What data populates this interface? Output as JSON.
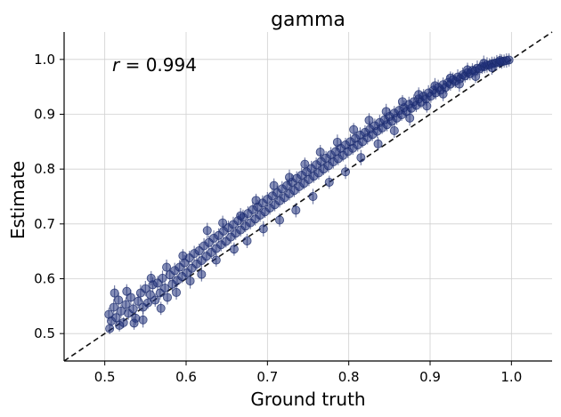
{
  "chart_data": {
    "type": "scatter",
    "title": "gamma",
    "xlabel": "Ground truth",
    "ylabel": "Estimate",
    "annotation": {
      "variable": "r",
      "text": " = 0.994"
    },
    "xlim": [
      0.45,
      1.05
    ],
    "ylim": [
      0.45,
      1.05
    ],
    "xticks": [
      "0.5",
      "0.6",
      "0.7",
      "0.8",
      "0.9",
      "1.0"
    ],
    "yticks": [
      "0.5",
      "0.6",
      "0.7",
      "0.8",
      "0.9",
      "1.0"
    ],
    "grid": true,
    "reference_line": {
      "style": "dashed",
      "x": [
        0.45,
        1.05
      ],
      "y": [
        0.45,
        1.05
      ]
    },
    "marker_color": "#1f2f7a",
    "line_color": "#1a2a6c",
    "points": [
      [
        0.505,
        0.535,
        0.012
      ],
      [
        0.508,
        0.523,
        0.01
      ],
      [
        0.511,
        0.548,
        0.015
      ],
      [
        0.514,
        0.529,
        0.011
      ],
      [
        0.517,
        0.561,
        0.014
      ],
      [
        0.52,
        0.541,
        0.012
      ],
      [
        0.523,
        0.52,
        0.01
      ],
      [
        0.526,
        0.553,
        0.013
      ],
      [
        0.529,
        0.537,
        0.012
      ],
      [
        0.532,
        0.566,
        0.014
      ],
      [
        0.535,
        0.545,
        0.011
      ],
      [
        0.538,
        0.528,
        0.012
      ],
      [
        0.541,
        0.559,
        0.013
      ],
      [
        0.544,
        0.574,
        0.015
      ],
      [
        0.547,
        0.548,
        0.012
      ],
      [
        0.55,
        0.582,
        0.014
      ],
      [
        0.553,
        0.556,
        0.011
      ],
      [
        0.556,
        0.571,
        0.013
      ],
      [
        0.559,
        0.589,
        0.014
      ],
      [
        0.562,
        0.561,
        0.012
      ],
      [
        0.565,
        0.592,
        0.013
      ],
      [
        0.568,
        0.574,
        0.012
      ],
      [
        0.571,
        0.601,
        0.014
      ],
      [
        0.574,
        0.583,
        0.011
      ],
      [
        0.577,
        0.566,
        0.013
      ],
      [
        0.58,
        0.607,
        0.012
      ],
      [
        0.583,
        0.59,
        0.013
      ],
      [
        0.586,
        0.615,
        0.014
      ],
      [
        0.589,
        0.597,
        0.012
      ],
      [
        0.592,
        0.621,
        0.013
      ],
      [
        0.595,
        0.604,
        0.012
      ],
      [
        0.598,
        0.629,
        0.014
      ],
      [
        0.601,
        0.611,
        0.011
      ],
      [
        0.604,
        0.638,
        0.013
      ],
      [
        0.607,
        0.619,
        0.012
      ],
      [
        0.61,
        0.646,
        0.014
      ],
      [
        0.613,
        0.627,
        0.012
      ],
      [
        0.616,
        0.651,
        0.013
      ],
      [
        0.619,
        0.633,
        0.012
      ],
      [
        0.622,
        0.66,
        0.014
      ],
      [
        0.625,
        0.641,
        0.011
      ],
      [
        0.628,
        0.666,
        0.013
      ],
      [
        0.631,
        0.648,
        0.012
      ],
      [
        0.634,
        0.674,
        0.014
      ],
      [
        0.637,
        0.655,
        0.012
      ],
      [
        0.64,
        0.679,
        0.013
      ],
      [
        0.643,
        0.662,
        0.012
      ],
      [
        0.646,
        0.687,
        0.014
      ],
      [
        0.649,
        0.668,
        0.011
      ],
      [
        0.652,
        0.693,
        0.013
      ],
      [
        0.655,
        0.676,
        0.012
      ],
      [
        0.658,
        0.699,
        0.014
      ],
      [
        0.661,
        0.683,
        0.012
      ],
      [
        0.664,
        0.706,
        0.013
      ],
      [
        0.667,
        0.689,
        0.012
      ],
      [
        0.67,
        0.712,
        0.014
      ],
      [
        0.673,
        0.696,
        0.011
      ],
      [
        0.676,
        0.719,
        0.013
      ],
      [
        0.679,
        0.702,
        0.012
      ],
      [
        0.682,
        0.726,
        0.014
      ],
      [
        0.685,
        0.709,
        0.012
      ],
      [
        0.688,
        0.731,
        0.013
      ],
      [
        0.691,
        0.716,
        0.012
      ],
      [
        0.694,
        0.738,
        0.014
      ],
      [
        0.697,
        0.722,
        0.011
      ],
      [
        0.7,
        0.745,
        0.013
      ],
      [
        0.703,
        0.729,
        0.012
      ],
      [
        0.706,
        0.751,
        0.014
      ],
      [
        0.709,
        0.735,
        0.012
      ],
      [
        0.712,
        0.757,
        0.013
      ],
      [
        0.715,
        0.742,
        0.012
      ],
      [
        0.718,
        0.764,
        0.014
      ],
      [
        0.721,
        0.748,
        0.011
      ],
      [
        0.724,
        0.77,
        0.013
      ],
      [
        0.727,
        0.755,
        0.012
      ],
      [
        0.73,
        0.776,
        0.014
      ],
      [
        0.733,
        0.761,
        0.012
      ],
      [
        0.736,
        0.783,
        0.013
      ],
      [
        0.739,
        0.768,
        0.012
      ],
      [
        0.742,
        0.789,
        0.014
      ],
      [
        0.745,
        0.774,
        0.011
      ],
      [
        0.748,
        0.795,
        0.013
      ],
      [
        0.751,
        0.781,
        0.012
      ],
      [
        0.754,
        0.801,
        0.014
      ],
      [
        0.757,
        0.787,
        0.012
      ],
      [
        0.76,
        0.808,
        0.013
      ],
      [
        0.763,
        0.793,
        0.012
      ],
      [
        0.766,
        0.814,
        0.014
      ],
      [
        0.769,
        0.8,
        0.011
      ],
      [
        0.772,
        0.82,
        0.013
      ],
      [
        0.775,
        0.806,
        0.012
      ],
      [
        0.778,
        0.826,
        0.014
      ],
      [
        0.781,
        0.813,
        0.012
      ],
      [
        0.784,
        0.832,
        0.013
      ],
      [
        0.787,
        0.819,
        0.012
      ],
      [
        0.79,
        0.838,
        0.014
      ],
      [
        0.793,
        0.825,
        0.011
      ],
      [
        0.796,
        0.844,
        0.013
      ],
      [
        0.799,
        0.832,
        0.012
      ],
      [
        0.802,
        0.85,
        0.014
      ],
      [
        0.805,
        0.838,
        0.012
      ],
      [
        0.808,
        0.856,
        0.013
      ],
      [
        0.811,
        0.844,
        0.012
      ],
      [
        0.814,
        0.862,
        0.014
      ],
      [
        0.817,
        0.85,
        0.011
      ],
      [
        0.82,
        0.867,
        0.013
      ],
      [
        0.823,
        0.857,
        0.012
      ],
      [
        0.826,
        0.873,
        0.014
      ],
      [
        0.829,
        0.863,
        0.012
      ],
      [
        0.832,
        0.879,
        0.013
      ],
      [
        0.835,
        0.869,
        0.012
      ],
      [
        0.838,
        0.885,
        0.014
      ],
      [
        0.841,
        0.875,
        0.011
      ],
      [
        0.844,
        0.89,
        0.013
      ],
      [
        0.847,
        0.881,
        0.012
      ],
      [
        0.85,
        0.896,
        0.014
      ],
      [
        0.853,
        0.887,
        0.012
      ],
      [
        0.856,
        0.902,
        0.013
      ],
      [
        0.859,
        0.893,
        0.012
      ],
      [
        0.862,
        0.907,
        0.014
      ],
      [
        0.865,
        0.899,
        0.011
      ],
      [
        0.868,
        0.912,
        0.013
      ],
      [
        0.871,
        0.905,
        0.012
      ],
      [
        0.874,
        0.918,
        0.014
      ],
      [
        0.877,
        0.911,
        0.012
      ],
      [
        0.88,
        0.923,
        0.013
      ],
      [
        0.883,
        0.916,
        0.012
      ],
      [
        0.886,
        0.928,
        0.014
      ],
      [
        0.889,
        0.922,
        0.011
      ],
      [
        0.892,
        0.933,
        0.013
      ],
      [
        0.895,
        0.928,
        0.012
      ],
      [
        0.898,
        0.939,
        0.014
      ],
      [
        0.901,
        0.933,
        0.012
      ],
      [
        0.904,
        0.944,
        0.013
      ],
      [
        0.907,
        0.939,
        0.012
      ],
      [
        0.91,
        0.949,
        0.014
      ],
      [
        0.913,
        0.944,
        0.011
      ],
      [
        0.916,
        0.954,
        0.013
      ],
      [
        0.919,
        0.949,
        0.012
      ],
      [
        0.922,
        0.958,
        0.014
      ],
      [
        0.925,
        0.955,
        0.012
      ],
      [
        0.928,
        0.963,
        0.013
      ],
      [
        0.931,
        0.96,
        0.012
      ],
      [
        0.934,
        0.968,
        0.014
      ],
      [
        0.937,
        0.965,
        0.011
      ],
      [
        0.94,
        0.972,
        0.013
      ],
      [
        0.943,
        0.97,
        0.012
      ],
      [
        0.946,
        0.976,
        0.014
      ],
      [
        0.949,
        0.974,
        0.012
      ],
      [
        0.952,
        0.98,
        0.013
      ],
      [
        0.955,
        0.979,
        0.012
      ],
      [
        0.958,
        0.984,
        0.014
      ],
      [
        0.961,
        0.983,
        0.011
      ],
      [
        0.964,
        0.987,
        0.013
      ],
      [
        0.967,
        0.987,
        0.012
      ],
      [
        0.97,
        0.99,
        0.014
      ],
      [
        0.973,
        0.99,
        0.012
      ],
      [
        0.976,
        0.992,
        0.013
      ],
      [
        0.979,
        0.993,
        0.012
      ],
      [
        0.982,
        0.994,
        0.014
      ],
      [
        0.985,
        0.995,
        0.011
      ],
      [
        0.988,
        0.996,
        0.013
      ],
      [
        0.991,
        0.997,
        0.012
      ],
      [
        0.994,
        0.998,
        0.013
      ],
      [
        0.997,
        0.999,
        0.012
      ],
      [
        0.506,
        0.509,
        0.01
      ],
      [
        0.512,
        0.574,
        0.014
      ],
      [
        0.518,
        0.515,
        0.011
      ],
      [
        0.527,
        0.577,
        0.013
      ],
      [
        0.536,
        0.519,
        0.012
      ],
      [
        0.547,
        0.525,
        0.014
      ],
      [
        0.557,
        0.601,
        0.013
      ],
      [
        0.569,
        0.546,
        0.012
      ],
      [
        0.576,
        0.621,
        0.014
      ],
      [
        0.588,
        0.575,
        0.013
      ],
      [
        0.596,
        0.642,
        0.012
      ],
      [
        0.605,
        0.596,
        0.014
      ],
      [
        0.619,
        0.608,
        0.013
      ],
      [
        0.626,
        0.688,
        0.014
      ],
      [
        0.637,
        0.634,
        0.012
      ],
      [
        0.645,
        0.702,
        0.013
      ],
      [
        0.659,
        0.654,
        0.012
      ],
      [
        0.667,
        0.715,
        0.014
      ],
      [
        0.675,
        0.669,
        0.013
      ],
      [
        0.686,
        0.743,
        0.012
      ],
      [
        0.695,
        0.691,
        0.014
      ],
      [
        0.708,
        0.77,
        0.013
      ],
      [
        0.715,
        0.707,
        0.012
      ],
      [
        0.727,
        0.785,
        0.014
      ],
      [
        0.735,
        0.725,
        0.013
      ],
      [
        0.746,
        0.809,
        0.012
      ],
      [
        0.756,
        0.75,
        0.014
      ],
      [
        0.765,
        0.831,
        0.013
      ],
      [
        0.776,
        0.776,
        0.012
      ],
      [
        0.786,
        0.849,
        0.014
      ],
      [
        0.796,
        0.795,
        0.013
      ],
      [
        0.806,
        0.872,
        0.012
      ],
      [
        0.815,
        0.821,
        0.014
      ],
      [
        0.825,
        0.889,
        0.013
      ],
      [
        0.836,
        0.846,
        0.012
      ],
      [
        0.846,
        0.905,
        0.014
      ],
      [
        0.856,
        0.87,
        0.013
      ],
      [
        0.866,
        0.923,
        0.012
      ],
      [
        0.875,
        0.893,
        0.014
      ],
      [
        0.886,
        0.936,
        0.013
      ],
      [
        0.896,
        0.915,
        0.012
      ],
      [
        0.906,
        0.952,
        0.014
      ],
      [
        0.916,
        0.937,
        0.013
      ],
      [
        0.925,
        0.966,
        0.012
      ],
      [
        0.936,
        0.955,
        0.014
      ],
      [
        0.946,
        0.981,
        0.013
      ],
      [
        0.956,
        0.969,
        0.012
      ],
      [
        0.966,
        0.993,
        0.014
      ],
      [
        0.976,
        0.985,
        0.013
      ],
      [
        0.986,
        0.998,
        0.012
      ]
    ]
  }
}
